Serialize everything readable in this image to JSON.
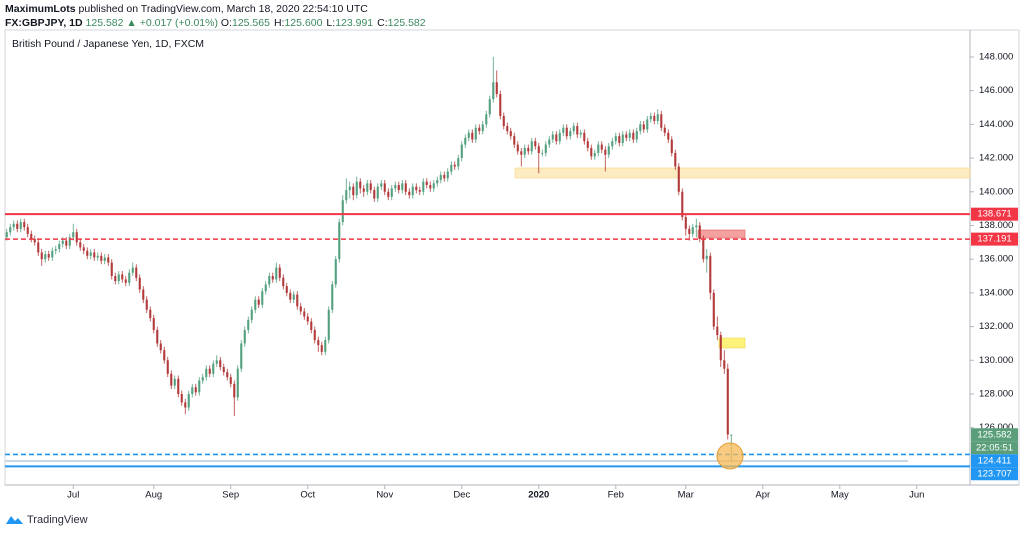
{
  "header": {
    "author": "MaximumLots",
    "published": "published on TradingView.com, March 18, 2020 22:54:10 UTC",
    "symbol": "FX:GBPJPY, 1D",
    "last": "125.582",
    "change": "▲ +0.017 (+0.01%)",
    "ohlc": [
      {
        "key": "O:",
        "value": "125.565"
      },
      {
        "key": "H:",
        "value": "125.600"
      },
      {
        "key": "L:",
        "value": "123.991"
      },
      {
        "key": "C:",
        "value": "125.582"
      }
    ]
  },
  "chart_data": {
    "type": "candlestick",
    "title": "British Pound / Japanese Yen, 1D, FXCM",
    "up_color": "#53a07f",
    "down_color": "#b23a3a",
    "candles": [
      [
        137.3,
        137.8,
        137.1,
        137.6
      ],
      [
        137.6,
        138.1,
        137.4,
        137.9
      ],
      [
        137.9,
        138.3,
        137.7,
        138.1
      ],
      [
        138.1,
        138.3,
        137.6,
        137.8
      ],
      [
        137.8,
        138.4,
        137.6,
        138.2
      ],
      [
        138.2,
        138.4,
        137.7,
        137.9
      ],
      [
        137.9,
        138.1,
        137.3,
        137.5
      ],
      [
        137.5,
        137.7,
        137.0,
        137.2
      ],
      [
        137.2,
        137.4,
        136.8,
        137.0
      ],
      [
        137.0,
        137.2,
        136.2,
        136.4
      ],
      [
        136.4,
        136.6,
        135.6,
        136.0
      ],
      [
        136.0,
        136.5,
        135.8,
        136.3
      ],
      [
        136.3,
        136.5,
        135.9,
        136.1
      ],
      [
        136.1,
        136.7,
        135.9,
        136.5
      ],
      [
        136.5,
        136.8,
        136.3,
        136.6
      ],
      [
        136.6,
        137.1,
        136.4,
        136.9
      ],
      [
        136.9,
        137.3,
        136.7,
        137.1
      ],
      [
        137.1,
        137.3,
        136.6,
        136.8
      ],
      [
        136.8,
        137.5,
        136.6,
        137.3
      ],
      [
        137.3,
        138.1,
        137.1,
        137.6
      ],
      [
        137.6,
        137.8,
        136.8,
        137.0
      ],
      [
        137.0,
        137.2,
        136.5,
        136.7
      ],
      [
        136.7,
        136.9,
        136.3,
        136.5
      ],
      [
        136.5,
        136.7,
        136.0,
        136.2
      ],
      [
        136.2,
        136.6,
        136.0,
        136.4
      ],
      [
        136.4,
        136.6,
        135.9,
        136.1
      ],
      [
        136.1,
        136.4,
        135.9,
        136.2
      ],
      [
        136.2,
        136.4,
        135.7,
        135.9
      ],
      [
        135.9,
        136.3,
        135.7,
        136.1
      ],
      [
        136.1,
        136.3,
        135.6,
        135.8
      ],
      [
        135.8,
        136.0,
        134.8,
        135.0
      ],
      [
        135.0,
        135.2,
        134.5,
        134.7
      ],
      [
        134.7,
        135.3,
        134.5,
        135.1
      ],
      [
        135.1,
        135.3,
        134.6,
        134.8
      ],
      [
        134.8,
        135.0,
        134.4,
        134.6
      ],
      [
        134.6,
        135.4,
        134.4,
        135.2
      ],
      [
        135.2,
        135.8,
        135.0,
        135.5
      ],
      [
        135.5,
        135.7,
        134.7,
        134.9
      ],
      [
        134.9,
        135.1,
        134.0,
        134.2
      ],
      [
        134.2,
        134.4,
        133.4,
        133.6
      ],
      [
        133.6,
        133.8,
        132.8,
        133.0
      ],
      [
        133.0,
        133.2,
        132.3,
        132.5
      ],
      [
        132.5,
        132.7,
        131.6,
        131.8
      ],
      [
        131.8,
        132.0,
        130.8,
        131.0
      ],
      [
        131.0,
        131.2,
        130.4,
        130.6
      ],
      [
        130.6,
        130.8,
        129.8,
        130.0
      ],
      [
        130.0,
        130.2,
        129.0,
        129.2
      ],
      [
        129.2,
        129.4,
        128.3,
        128.5
      ],
      [
        128.5,
        129.1,
        128.3,
        128.9
      ],
      [
        128.9,
        129.1,
        127.8,
        128.0
      ],
      [
        128.0,
        128.2,
        127.3,
        127.5
      ],
      [
        127.5,
        127.7,
        126.8,
        127.2
      ],
      [
        127.2,
        128.2,
        127.0,
        128.0
      ],
      [
        128.0,
        128.6,
        127.8,
        128.4
      ],
      [
        128.4,
        128.6,
        127.9,
        128.1
      ],
      [
        128.1,
        129.0,
        127.9,
        128.8
      ],
      [
        128.8,
        129.2,
        128.6,
        129.0
      ],
      [
        129.0,
        129.7,
        128.8,
        129.5
      ],
      [
        129.5,
        129.7,
        129.0,
        129.2
      ],
      [
        129.2,
        130.0,
        129.0,
        129.8
      ],
      [
        129.8,
        130.3,
        129.6,
        130.0
      ],
      [
        130.0,
        130.2,
        129.4,
        129.6
      ],
      [
        129.6,
        129.8,
        129.1,
        129.3
      ],
      [
        129.3,
        129.5,
        128.8,
        129.0
      ],
      [
        129.0,
        129.2,
        128.4,
        128.6
      ],
      [
        128.6,
        128.8,
        126.7,
        127.8
      ],
      [
        127.8,
        129.7,
        127.6,
        129.5
      ],
      [
        129.5,
        131.2,
        129.3,
        131.0
      ],
      [
        131.0,
        132.0,
        130.8,
        131.8
      ],
      [
        131.8,
        132.6,
        131.6,
        132.4
      ],
      [
        132.4,
        133.2,
        132.2,
        133.0
      ],
      [
        133.0,
        133.8,
        132.8,
        133.6
      ],
      [
        133.6,
        133.8,
        133.1,
        133.3
      ],
      [
        133.3,
        134.3,
        133.1,
        134.1
      ],
      [
        134.1,
        134.7,
        133.9,
        134.5
      ],
      [
        134.5,
        135.2,
        134.3,
        135.0
      ],
      [
        135.0,
        135.2,
        134.6,
        134.8
      ],
      [
        134.8,
        135.8,
        134.6,
        135.5
      ],
      [
        135.5,
        135.7,
        134.7,
        134.9
      ],
      [
        134.9,
        135.1,
        134.2,
        134.4
      ],
      [
        134.4,
        134.6,
        133.8,
        134.0
      ],
      [
        134.0,
        134.2,
        133.4,
        133.6
      ],
      [
        133.6,
        134.1,
        133.4,
        133.9
      ],
      [
        133.9,
        134.1,
        133.0,
        133.2
      ],
      [
        133.2,
        133.4,
        132.7,
        132.9
      ],
      [
        132.9,
        133.1,
        132.4,
        132.6
      ],
      [
        132.6,
        132.8,
        132.1,
        132.3
      ],
      [
        132.3,
        132.5,
        131.6,
        131.8
      ],
      [
        131.8,
        132.0,
        131.0,
        131.2
      ],
      [
        131.2,
        131.4,
        130.5,
        130.9
      ],
      [
        130.9,
        131.1,
        130.3,
        130.5
      ],
      [
        130.5,
        131.4,
        130.3,
        131.2
      ],
      [
        131.2,
        133.2,
        131.0,
        133.0
      ],
      [
        133.0,
        134.7,
        132.8,
        134.5
      ],
      [
        134.5,
        136.2,
        134.3,
        136.0
      ],
      [
        136.0,
        138.4,
        135.8,
        138.2
      ],
      [
        138.2,
        139.8,
        138.0,
        139.5
      ],
      [
        139.5,
        140.8,
        139.3,
        140.1
      ],
      [
        140.1,
        140.6,
        139.6,
        140.3
      ],
      [
        140.3,
        140.5,
        139.5,
        139.8
      ],
      [
        139.8,
        140.9,
        139.6,
        140.6
      ],
      [
        140.6,
        140.8,
        139.9,
        140.2
      ],
      [
        140.2,
        140.4,
        139.7,
        140.0
      ],
      [
        140.0,
        140.7,
        139.8,
        140.5
      ],
      [
        140.5,
        140.7,
        139.9,
        140.1
      ],
      [
        140.1,
        140.3,
        139.4,
        139.6
      ],
      [
        139.6,
        140.5,
        139.4,
        140.3
      ],
      [
        140.3,
        140.7,
        140.1,
        140.5
      ],
      [
        140.5,
        140.7,
        139.8,
        140.0
      ],
      [
        140.0,
        140.2,
        139.5,
        139.7
      ],
      [
        139.7,
        140.4,
        139.5,
        140.2
      ],
      [
        140.2,
        140.6,
        140.0,
        140.4
      ],
      [
        140.4,
        140.6,
        139.9,
        140.1
      ],
      [
        140.1,
        140.7,
        139.9,
        140.5
      ],
      [
        140.5,
        140.7,
        139.8,
        140.0
      ],
      [
        140.0,
        140.2,
        139.6,
        139.8
      ],
      [
        139.8,
        140.5,
        139.6,
        140.3
      ],
      [
        140.3,
        140.5,
        139.9,
        140.1
      ],
      [
        140.1,
        140.3,
        139.8,
        140.0
      ],
      [
        140.0,
        140.8,
        139.8,
        140.6
      ],
      [
        140.6,
        140.8,
        140.2,
        140.4
      ],
      [
        140.4,
        140.6,
        140.0,
        140.2
      ],
      [
        140.2,
        140.7,
        140.0,
        140.5
      ],
      [
        140.5,
        140.9,
        140.3,
        140.7
      ],
      [
        140.7,
        141.2,
        140.5,
        141.0
      ],
      [
        141.0,
        141.2,
        140.6,
        140.8
      ],
      [
        140.8,
        141.4,
        140.6,
        141.2
      ],
      [
        141.2,
        141.8,
        141.0,
        141.6
      ],
      [
        141.6,
        141.8,
        141.3,
        141.5
      ],
      [
        141.5,
        142.2,
        141.3,
        142.0
      ],
      [
        142.0,
        143.0,
        141.8,
        142.8
      ],
      [
        142.8,
        143.4,
        142.6,
        143.2
      ],
      [
        143.2,
        143.7,
        143.0,
        143.5
      ],
      [
        143.5,
        143.7,
        142.9,
        143.1
      ],
      [
        143.1,
        144.0,
        142.9,
        143.8
      ],
      [
        143.8,
        144.0,
        143.4,
        143.6
      ],
      [
        143.6,
        144.2,
        143.4,
        144.0
      ],
      [
        144.0,
        144.8,
        143.8,
        144.6
      ],
      [
        144.6,
        145.7,
        144.4,
        145.5
      ],
      [
        145.5,
        148.0,
        145.3,
        146.5
      ],
      [
        146.5,
        147.2,
        145.6,
        145.8
      ],
      [
        145.8,
        146.0,
        144.3,
        144.5
      ],
      [
        144.5,
        144.7,
        143.7,
        143.9
      ],
      [
        143.9,
        144.1,
        143.4,
        143.6
      ],
      [
        143.6,
        143.8,
        143.1,
        143.3
      ],
      [
        143.3,
        143.5,
        142.6,
        142.8
      ],
      [
        142.8,
        143.0,
        142.2,
        142.4
      ],
      [
        142.4,
        142.6,
        141.5,
        142.2
      ],
      [
        142.2,
        142.8,
        142.0,
        142.6
      ],
      [
        142.6,
        142.8,
        142.2,
        142.4
      ],
      [
        142.4,
        143.2,
        142.2,
        143.0
      ],
      [
        143.0,
        143.2,
        142.5,
        142.7
      ],
      [
        142.7,
        142.9,
        141.1,
        142.3
      ],
      [
        142.3,
        142.5,
        142.1,
        142.3
      ],
      [
        142.3,
        143.0,
        142.1,
        142.8
      ],
      [
        142.8,
        143.3,
        142.6,
        143.1
      ],
      [
        143.1,
        143.6,
        142.9,
        143.4
      ],
      [
        143.4,
        143.6,
        142.8,
        143.0
      ],
      [
        143.0,
        143.7,
        142.8,
        143.5
      ],
      [
        143.5,
        144.0,
        143.3,
        143.8
      ],
      [
        143.8,
        144.0,
        143.1,
        143.3
      ],
      [
        143.3,
        143.8,
        143.1,
        143.6
      ],
      [
        143.6,
        144.1,
        143.4,
        143.9
      ],
      [
        143.9,
        144.1,
        143.2,
        143.4
      ],
      [
        143.4,
        143.7,
        143.2,
        143.5
      ],
      [
        143.5,
        143.7,
        142.8,
        143.0
      ],
      [
        143.0,
        143.2,
        142.4,
        142.6
      ],
      [
        142.6,
        142.8,
        141.9,
        142.1
      ],
      [
        142.1,
        142.5,
        141.9,
        142.3
      ],
      [
        142.3,
        143.0,
        142.1,
        142.8
      ],
      [
        142.8,
        143.0,
        142.3,
        142.5
      ],
      [
        142.5,
        142.7,
        141.2,
        142.2
      ],
      [
        142.2,
        142.9,
        142.0,
        142.7
      ],
      [
        142.7,
        143.2,
        142.5,
        143.0
      ],
      [
        143.0,
        143.5,
        142.8,
        143.3
      ],
      [
        143.3,
        143.5,
        142.7,
        142.9
      ],
      [
        142.9,
        143.6,
        142.7,
        143.4
      ],
      [
        143.4,
        143.6,
        143.0,
        143.2
      ],
      [
        143.2,
        143.7,
        143.0,
        143.5
      ],
      [
        143.5,
        143.7,
        142.9,
        143.1
      ],
      [
        143.1,
        143.8,
        142.9,
        143.6
      ],
      [
        143.6,
        144.2,
        143.4,
        144.0
      ],
      [
        144.0,
        144.2,
        143.5,
        143.7
      ],
      [
        143.7,
        144.5,
        143.5,
        144.3
      ],
      [
        144.3,
        144.7,
        144.1,
        144.5
      ],
      [
        144.5,
        144.7,
        144.0,
        144.2
      ],
      [
        144.2,
        144.9,
        144.0,
        144.6
      ],
      [
        144.6,
        144.8,
        143.6,
        143.8
      ],
      [
        143.8,
        144.0,
        143.3,
        143.5
      ],
      [
        143.5,
        143.7,
        142.9,
        143.1
      ],
      [
        143.1,
        143.3,
        142.1,
        142.3
      ],
      [
        142.3,
        142.5,
        141.3,
        141.5
      ],
      [
        141.5,
        141.7,
        139.8,
        140.0
      ],
      [
        140.0,
        140.2,
        138.3,
        138.5
      ],
      [
        138.5,
        138.7,
        137.4,
        137.8
      ],
      [
        137.8,
        138.0,
        137.1,
        137.5
      ],
      [
        137.5,
        138.1,
        137.3,
        137.9
      ],
      [
        137.9,
        138.4,
        137.3,
        138.0
      ],
      [
        138.0,
        138.2,
        137.0,
        137.2
      ],
      [
        137.2,
        137.4,
        135.8,
        136.0
      ],
      [
        136.0,
        136.6,
        135.2,
        136.2
      ],
      [
        136.2,
        136.4,
        133.6,
        134.0
      ],
      [
        134.0,
        134.2,
        131.8,
        132.0
      ],
      [
        132.0,
        132.6,
        131.2,
        131.5
      ],
      [
        131.5,
        131.7,
        129.6,
        130.0
      ],
      [
        130.0,
        130.6,
        129.2,
        129.5
      ],
      [
        129.5,
        129.8,
        125.3,
        125.6
      ],
      [
        125.565,
        125.6,
        123.991,
        125.582
      ]
    ],
    "xlim": [
      -0.5,
      275.2
    ],
    "xticks": [
      {
        "value": 19,
        "label": "Jul"
      },
      {
        "value": 42,
        "label": "Aug"
      },
      {
        "value": 64,
        "label": "Sep"
      },
      {
        "value": 86,
        "label": "Oct"
      },
      {
        "value": 108,
        "label": "Nov"
      },
      {
        "value": 130,
        "label": "Dec"
      },
      {
        "value": 152,
        "label": "2020"
      },
      {
        "value": 174,
        "label": "Feb"
      },
      {
        "value": 194,
        "label": "Mar"
      },
      {
        "value": 216,
        "label": "Apr"
      },
      {
        "value": 238,
        "label": "May"
      },
      {
        "value": 260,
        "label": "Jun"
      }
    ],
    "ylim": [
      122.6,
      149.6
    ],
    "yticks": [
      {
        "value": 126,
        "label": "126.000"
      },
      {
        "value": 128,
        "label": "128.000"
      },
      {
        "value": 130,
        "label": "130.000"
      },
      {
        "value": 132,
        "label": "132.000"
      },
      {
        "value": 134,
        "label": "134.000"
      },
      {
        "value": 136,
        "label": "136.000"
      },
      {
        "value": 138,
        "label": "138.000"
      },
      {
        "value": 140,
        "label": "140.000"
      },
      {
        "value": 142,
        "label": "142.000"
      },
      {
        "value": 144,
        "label": "144.000"
      },
      {
        "value": 146,
        "label": "146.000"
      },
      {
        "value": 148,
        "label": "148.000"
      }
    ],
    "levels": [
      {
        "value": 138.671,
        "color": "#f23645",
        "style": "solid"
      },
      {
        "value": 137.191,
        "color": "#f23645",
        "style": "dashed"
      },
      {
        "value": 124.411,
        "color": "#2196f3",
        "style": "dashed"
      },
      {
        "value": 123.707,
        "color": "#2196f3",
        "style": "solid"
      }
    ],
    "last_price": {
      "value": 125.582,
      "countdown": "22:05:51",
      "color": "#5b9f7a"
    }
  },
  "footer": {
    "brand": "TradingView"
  }
}
